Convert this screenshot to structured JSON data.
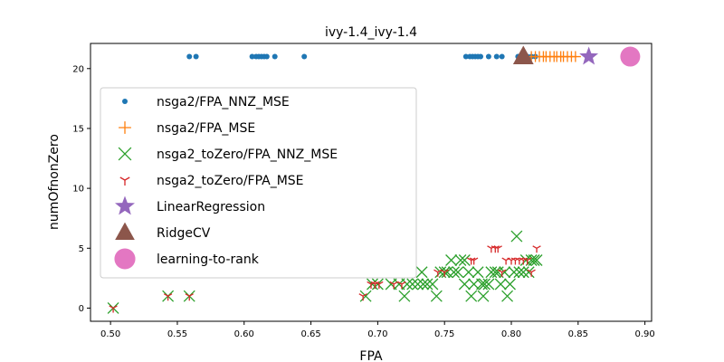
{
  "chart_data": {
    "type": "scatter",
    "title": "ivy-1.4_ivy-1.4",
    "xlabel": "FPA",
    "ylabel": "numOfnonZero",
    "xlim": [
      0.485,
      0.905
    ],
    "ylim": [
      -1.1,
      22.1
    ],
    "xticks": [
      "0.50",
      "0.55",
      "0.60",
      "0.65",
      "0.70",
      "0.75",
      "0.80",
      "0.85",
      "0.90"
    ],
    "yticks": [
      "0",
      "5",
      "10",
      "15",
      "20"
    ],
    "legend_position": "center-left",
    "grid": false,
    "series": [
      {
        "name": "nsga2/FPA_NNZ_MSE",
        "marker": "dot",
        "color": "#1f77b4",
        "points": [
          [
            0.559,
            21
          ],
          [
            0.564,
            21
          ],
          [
            0.606,
            21
          ],
          [
            0.609,
            21
          ],
          [
            0.611,
            21
          ],
          [
            0.613,
            21
          ],
          [
            0.615,
            21
          ],
          [
            0.617,
            21
          ],
          [
            0.623,
            21
          ],
          [
            0.645,
            21
          ],
          [
            0.766,
            21
          ],
          [
            0.769,
            21
          ],
          [
            0.771,
            21
          ],
          [
            0.773,
            21
          ],
          [
            0.775,
            21
          ],
          [
            0.777,
            21
          ],
          [
            0.783,
            21
          ],
          [
            0.789,
            21
          ],
          [
            0.793,
            21
          ],
          [
            0.805,
            21
          ],
          [
            0.809,
            21
          ],
          [
            0.812,
            21
          ],
          [
            0.815,
            21
          ],
          [
            0.818,
            21
          ]
        ]
      },
      {
        "name": "nsga2/FPA_MSE",
        "marker": "plus",
        "color": "#ff7f0e",
        "points": [
          [
            0.815,
            21
          ],
          [
            0.818,
            21
          ],
          [
            0.821,
            21
          ],
          [
            0.824,
            21
          ],
          [
            0.826,
            21
          ],
          [
            0.829,
            21
          ],
          [
            0.832,
            21
          ],
          [
            0.834,
            21
          ],
          [
            0.837,
            21
          ],
          [
            0.839,
            21
          ],
          [
            0.842,
            21
          ],
          [
            0.845,
            21
          ],
          [
            0.848,
            21
          ]
        ]
      },
      {
        "name": "nsga2_toZero/FPA_NNZ_MSE",
        "marker": "x",
        "color": "#2ca02c",
        "points": [
          [
            0.502,
            0
          ],
          [
            0.543,
            1
          ],
          [
            0.559,
            1
          ],
          [
            0.691,
            1
          ],
          [
            0.696,
            2
          ],
          [
            0.7,
            2
          ],
          [
            0.71,
            2
          ],
          [
            0.716,
            2
          ],
          [
            0.72,
            1
          ],
          [
            0.722,
            2
          ],
          [
            0.726,
            2
          ],
          [
            0.73,
            2
          ],
          [
            0.734,
            2
          ],
          [
            0.737,
            2
          ],
          [
            0.741,
            2
          ],
          [
            0.744,
            1
          ],
          [
            0.747,
            3
          ],
          [
            0.75,
            3
          ],
          [
            0.752,
            3
          ],
          [
            0.755,
            4
          ],
          [
            0.757,
            3
          ],
          [
            0.76,
            3
          ],
          [
            0.762,
            4
          ],
          [
            0.765,
            4
          ],
          [
            0.768,
            3
          ],
          [
            0.77,
            1
          ],
          [
            0.772,
            2
          ],
          [
            0.775,
            3
          ],
          [
            0.778,
            2
          ],
          [
            0.78,
            2
          ],
          [
            0.783,
            2
          ],
          [
            0.785,
            3
          ],
          [
            0.788,
            3
          ],
          [
            0.79,
            3
          ],
          [
            0.792,
            2
          ],
          [
            0.795,
            3
          ],
          [
            0.797,
            1
          ],
          [
            0.799,
            2
          ],
          [
            0.802,
            3
          ],
          [
            0.804,
            6
          ],
          [
            0.806,
            3
          ],
          [
            0.809,
            3
          ],
          [
            0.811,
            4
          ],
          [
            0.813,
            3
          ],
          [
            0.815,
            4
          ],
          [
            0.817,
            4
          ],
          [
            0.819,
            4
          ],
          [
            0.765,
            2
          ],
          [
            0.733,
            3
          ],
          [
            0.779,
            1
          ]
        ]
      },
      {
        "name": "nsga2_toZero/FPA_MSE",
        "marker": "tri_down",
        "color": "#d62728",
        "points": [
          [
            0.502,
            0
          ],
          [
            0.543,
            1
          ],
          [
            0.559,
            1
          ],
          [
            0.689,
            1
          ],
          [
            0.695,
            2
          ],
          [
            0.698,
            2
          ],
          [
            0.701,
            2
          ],
          [
            0.712,
            2
          ],
          [
            0.718,
            2
          ],
          [
            0.745,
            3
          ],
          [
            0.75,
            3
          ],
          [
            0.77,
            4
          ],
          [
            0.772,
            4
          ],
          [
            0.785,
            5
          ],
          [
            0.788,
            5
          ],
          [
            0.79,
            5
          ],
          [
            0.793,
            3
          ],
          [
            0.796,
            4
          ],
          [
            0.8,
            4
          ],
          [
            0.803,
            4
          ],
          [
            0.806,
            4
          ],
          [
            0.809,
            4
          ],
          [
            0.812,
            4
          ],
          [
            0.815,
            3
          ],
          [
            0.819,
            5
          ]
        ]
      },
      {
        "name": "LinearRegression",
        "marker": "star",
        "color": "#9467bd",
        "points": [
          [
            0.858,
            21
          ]
        ]
      },
      {
        "name": "RidgeCV",
        "marker": "triangle",
        "color": "#8c564b",
        "points": [
          [
            0.809,
            21
          ]
        ]
      },
      {
        "name": "learning-to-rank",
        "marker": "circle",
        "color": "#e377c2",
        "points": [
          [
            0.889,
            21
          ]
        ]
      }
    ]
  }
}
